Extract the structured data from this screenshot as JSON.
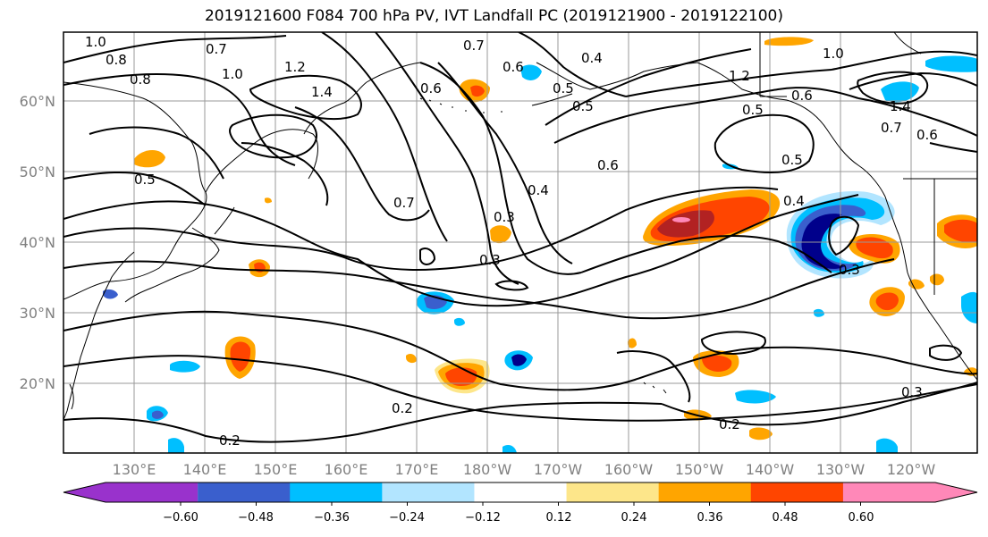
{
  "title": "2019121600 F084 700 hPa PV, IVT Landfall PC (2019121900 - 2019122100)",
  "map": {
    "lat_labels": [
      "60°N",
      "50°N",
      "40°N",
      "30°N",
      "20°N"
    ],
    "lon_labels": [
      "130°E",
      "140°E",
      "150°E",
      "160°E",
      "170°E",
      "180°W",
      "170°W",
      "160°W",
      "150°W",
      "140°W",
      "130°W",
      "120°W"
    ],
    "contour_labels": [
      "1.0",
      "0.8",
      "0.8",
      "0.7",
      "1.0",
      "1.2",
      "1.4",
      "0.5",
      "0.7",
      "0.6",
      "0.7",
      "0.6",
      "0.5",
      "0.4",
      "0.6",
      "0.5",
      "0.4",
      "0.3",
      "0.3",
      "0.2",
      "0.2",
      "0.2",
      "0.3",
      "0.4",
      "0.5",
      "0.5",
      "0.3",
      "0.7",
      "0.6",
      "1.0",
      "1.2",
      "1.4",
      "0.6"
    ]
  },
  "colorbar": {
    "ticks": [
      "−0.60",
      "−0.48",
      "−0.36",
      "−0.24",
      "−0.12",
      "0.12",
      "0.24",
      "0.36",
      "0.48",
      "0.60"
    ],
    "colors": [
      "#9932cc",
      "#00008b",
      "#3a5fcd",
      "#00bfff",
      "#b2e5ff",
      "#ffffff",
      "#fde68a",
      "#ffa500",
      "#ff4500",
      "#b22222",
      "#ff88b8"
    ]
  }
}
